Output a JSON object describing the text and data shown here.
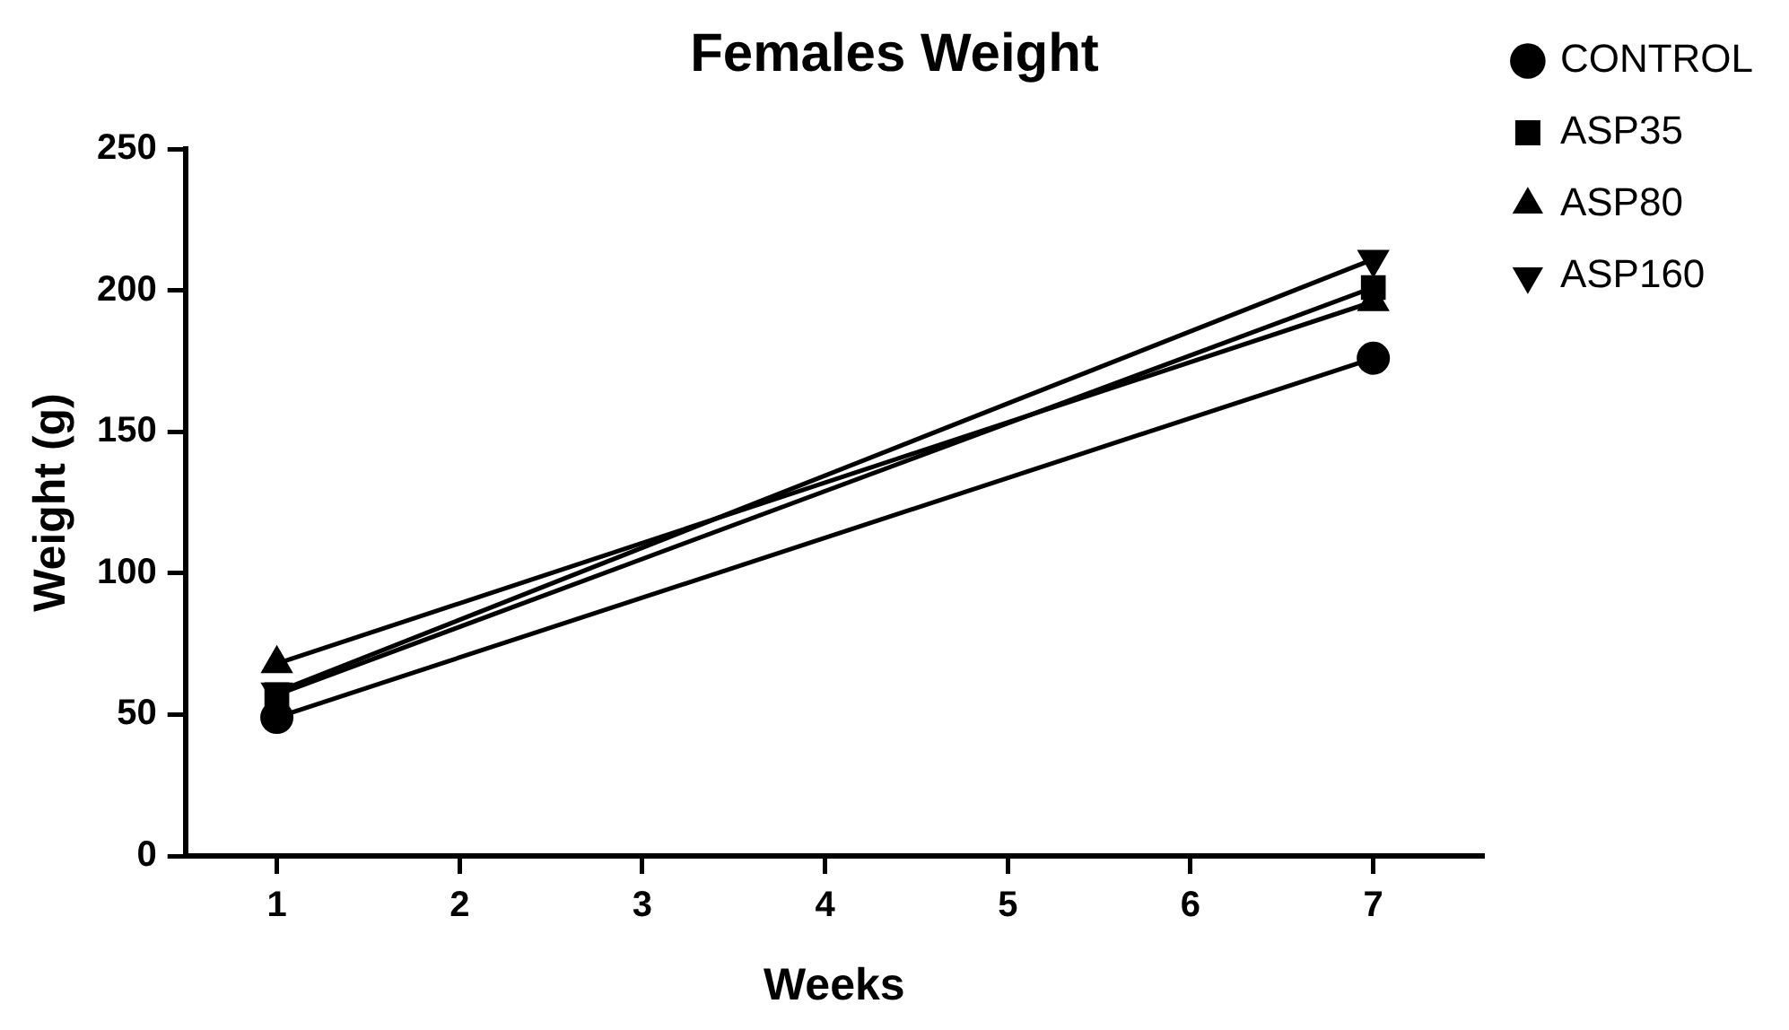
{
  "chart_data": {
    "type": "line",
    "title": "Females Weight",
    "xlabel": "Weeks",
    "ylabel": "Weight (g)",
    "x": [
      1,
      7
    ],
    "xlim": [
      0.5,
      7.6
    ],
    "xticks": [
      1,
      2,
      3,
      4,
      5,
      6,
      7
    ],
    "ylim": [
      0,
      250
    ],
    "yticks": [
      0,
      50,
      100,
      150,
      200,
      250
    ],
    "series": [
      {
        "name": "CONTROL",
        "color": "#000000",
        "marker": "circle",
        "values": [
          49,
          176
        ]
      },
      {
        "name": "ASP35",
        "color": "#000000",
        "marker": "square",
        "values": [
          57,
          201
        ]
      },
      {
        "name": "ASP80",
        "color": "#000000",
        "marker": "triangle",
        "values": [
          68,
          196
        ]
      },
      {
        "name": "ASP160",
        "color": "#000000",
        "marker": "triangle-down",
        "values": [
          58,
          211
        ]
      }
    ],
    "legend": "right",
    "grid": false,
    "line_style": "solid"
  }
}
